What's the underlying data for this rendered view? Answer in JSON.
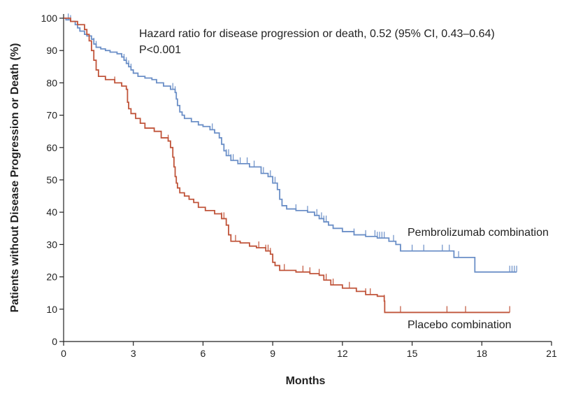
{
  "chart_data": {
    "type": "line",
    "subtype": "kaplan-meier",
    "title": "",
    "xlabel": "Months",
    "ylabel": "Patients without Disease Progression or Death (%)",
    "xlim": [
      0,
      21
    ],
    "ylim": [
      0,
      100
    ],
    "xticks": [
      0,
      3,
      6,
      9,
      12,
      15,
      18,
      21
    ],
    "yticks": [
      0,
      10,
      20,
      30,
      40,
      50,
      60,
      70,
      80,
      90,
      100
    ],
    "grid": false,
    "annotations": [
      "Hazard ratio for disease progression or death, 0.52 (95% CI, 0.43–0.64)",
      "P<0.001"
    ],
    "series": [
      {
        "name": "Pembrolizumab combination",
        "color": "#6b8fc7",
        "points": [
          [
            0,
            100
          ],
          [
            0.1,
            99.5
          ],
          [
            0.3,
            99
          ],
          [
            0.5,
            98
          ],
          [
            0.6,
            97
          ],
          [
            0.7,
            96
          ],
          [
            0.9,
            95
          ],
          [
            1.0,
            94.5
          ],
          [
            1.2,
            93.5
          ],
          [
            1.3,
            92
          ],
          [
            1.4,
            91
          ],
          [
            1.6,
            90.5
          ],
          [
            1.8,
            90
          ],
          [
            2.0,
            89.5
          ],
          [
            2.3,
            89
          ],
          [
            2.5,
            88
          ],
          [
            2.6,
            87
          ],
          [
            2.7,
            86
          ],
          [
            2.8,
            85
          ],
          [
            2.9,
            84
          ],
          [
            3.0,
            83
          ],
          [
            3.2,
            82
          ],
          [
            3.5,
            81.5
          ],
          [
            3.8,
            81
          ],
          [
            4.0,
            80
          ],
          [
            4.3,
            79
          ],
          [
            4.6,
            78
          ],
          [
            4.8,
            77
          ],
          [
            4.85,
            75
          ],
          [
            4.9,
            73
          ],
          [
            5.0,
            71
          ],
          [
            5.1,
            70
          ],
          [
            5.2,
            69
          ],
          [
            5.5,
            68
          ],
          [
            5.8,
            67
          ],
          [
            6.0,
            66.5
          ],
          [
            6.3,
            65.5
          ],
          [
            6.5,
            64.5
          ],
          [
            6.7,
            63
          ],
          [
            6.8,
            61
          ],
          [
            6.9,
            59
          ],
          [
            7.0,
            57.5
          ],
          [
            7.2,
            56
          ],
          [
            7.5,
            55
          ],
          [
            8.0,
            54
          ],
          [
            8.5,
            52
          ],
          [
            8.8,
            51
          ],
          [
            9.0,
            49
          ],
          [
            9.2,
            47
          ],
          [
            9.3,
            44
          ],
          [
            9.4,
            42
          ],
          [
            9.6,
            41
          ],
          [
            10.0,
            40.5
          ],
          [
            10.5,
            40
          ],
          [
            10.8,
            39
          ],
          [
            11.0,
            38
          ],
          [
            11.2,
            37
          ],
          [
            11.4,
            36
          ],
          [
            11.6,
            35
          ],
          [
            12.0,
            34
          ],
          [
            12.5,
            33
          ],
          [
            13.0,
            32.5
          ],
          [
            13.5,
            32
          ],
          [
            14.0,
            31
          ],
          [
            14.3,
            30
          ],
          [
            14.5,
            28
          ],
          [
            15.5,
            28
          ],
          [
            16.5,
            28
          ],
          [
            16.8,
            26
          ],
          [
            17.7,
            26
          ],
          [
            17.7,
            21.5
          ],
          [
            19.5,
            21.5
          ]
        ],
        "censor_x": [
          0.2,
          0.3,
          1.3,
          1.4,
          2.6,
          2.7,
          2.8,
          2.9,
          4.7,
          4.8,
          6.4,
          6.9,
          7.0,
          7.1,
          7.2,
          7.3,
          7.6,
          7.9,
          8.2,
          8.6,
          8.9,
          9.0,
          9.1,
          9.2,
          9.3,
          9.4,
          10.0,
          10.5,
          10.9,
          11.1,
          11.2,
          11.3,
          12.5,
          13.0,
          13.4,
          13.5,
          13.6,
          13.7,
          13.8,
          14.2,
          14.5,
          15.0,
          15.5,
          16.3,
          16.6,
          16.8,
          17.0,
          19.2,
          19.3,
          19.4,
          19.5
        ]
      },
      {
        "name": "Placebo combination",
        "color": "#c0543a",
        "points": [
          [
            0,
            100
          ],
          [
            0.3,
            99
          ],
          [
            0.6,
            98
          ],
          [
            0.9,
            96.5
          ],
          [
            1.0,
            95
          ],
          [
            1.1,
            93
          ],
          [
            1.2,
            90
          ],
          [
            1.3,
            87
          ],
          [
            1.4,
            84
          ],
          [
            1.5,
            82
          ],
          [
            1.8,
            81
          ],
          [
            2.2,
            80
          ],
          [
            2.5,
            79
          ],
          [
            2.7,
            78
          ],
          [
            2.75,
            74
          ],
          [
            2.8,
            72
          ],
          [
            2.9,
            70.5
          ],
          [
            3.1,
            69
          ],
          [
            3.3,
            67.5
          ],
          [
            3.5,
            66
          ],
          [
            3.9,
            65
          ],
          [
            4.2,
            63
          ],
          [
            4.5,
            62
          ],
          [
            4.6,
            60
          ],
          [
            4.7,
            57
          ],
          [
            4.75,
            54
          ],
          [
            4.8,
            51
          ],
          [
            4.85,
            49
          ],
          [
            4.9,
            47.5
          ],
          [
            5.0,
            46
          ],
          [
            5.2,
            45
          ],
          [
            5.4,
            44
          ],
          [
            5.6,
            43
          ],
          [
            5.8,
            41.5
          ],
          [
            6.1,
            40.5
          ],
          [
            6.5,
            39.5
          ],
          [
            6.8,
            38
          ],
          [
            7.0,
            36
          ],
          [
            7.1,
            33
          ],
          [
            7.2,
            31
          ],
          [
            7.6,
            30.5
          ],
          [
            8.0,
            29.5
          ],
          [
            8.3,
            29
          ],
          [
            8.7,
            28
          ],
          [
            8.9,
            27
          ],
          [
            9.0,
            24.5
          ],
          [
            9.1,
            23.5
          ],
          [
            9.3,
            22
          ],
          [
            10.0,
            21.5
          ],
          [
            10.6,
            21
          ],
          [
            11.0,
            20.5
          ],
          [
            11.2,
            19
          ],
          [
            11.5,
            17.5
          ],
          [
            12.0,
            16.5
          ],
          [
            12.6,
            15.5
          ],
          [
            13.0,
            14.5
          ],
          [
            13.5,
            14
          ],
          [
            13.8,
            12.5
          ],
          [
            13.82,
            9
          ],
          [
            19.2,
            9
          ]
        ],
        "censor_x": [
          2.2,
          4.5,
          6.8,
          6.9,
          7.0,
          7.4,
          8.4,
          8.7,
          8.8,
          8.9,
          9.0,
          9.5,
          10.3,
          10.6,
          11.0,
          11.3,
          11.6,
          12.3,
          13.0,
          13.2,
          13.8,
          14.5,
          16.5,
          17.3,
          19.2
        ]
      }
    ]
  }
}
